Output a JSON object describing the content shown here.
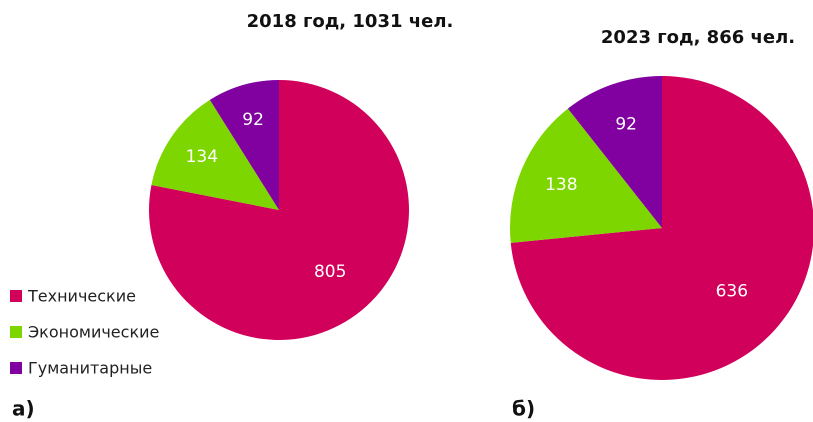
{
  "chart_data": [
    {
      "type": "pie",
      "title": "2018 год, 1031 чел.",
      "panel_label": "а)",
      "categories": [
        "Технические",
        "Экономические",
        "Гуманитарные"
      ],
      "values": [
        805,
        134,
        92
      ],
      "colors": [
        "#d1005a",
        "#7ed600",
        "#8000a0"
      ]
    },
    {
      "type": "pie",
      "title": "2023 год, 866 чел.",
      "panel_label": "б)",
      "categories": [
        "Технические",
        "Экономические",
        "Гуманитарные"
      ],
      "values": [
        636,
        138,
        92
      ],
      "colors": [
        "#d1005a",
        "#7ed600",
        "#8000a0"
      ]
    }
  ]
}
